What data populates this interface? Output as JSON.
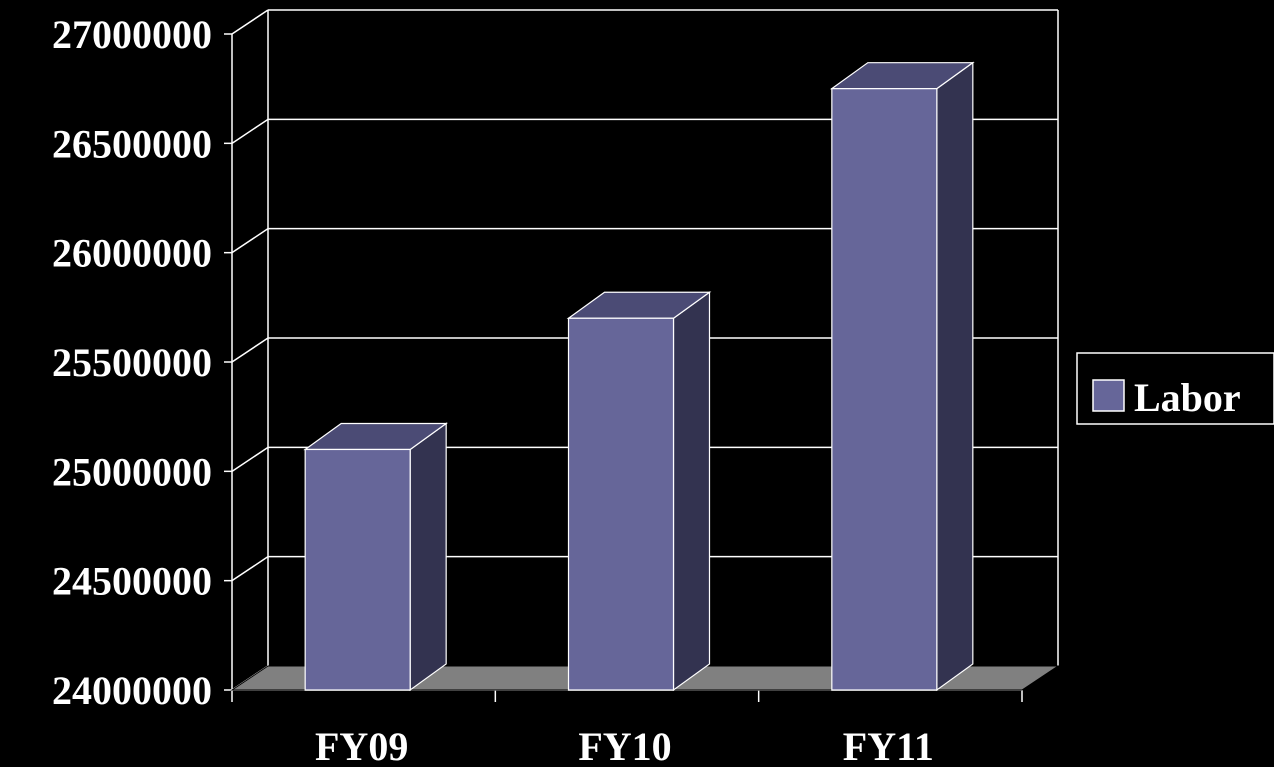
{
  "chart_data": {
    "type": "bar",
    "categories": [
      "FY09",
      "FY10",
      "FY11"
    ],
    "series": [
      {
        "name": "Labor",
        "values": [
          25100000,
          25700000,
          26750000
        ]
      }
    ],
    "title": "",
    "xlabel": "",
    "ylabel": "",
    "ylim": [
      24000000,
      27000000
    ],
    "yticks": [
      "24000000",
      "24500000",
      "25000000",
      "25500000",
      "26000000",
      "26500000",
      "27000000"
    ],
    "grid": true,
    "legend_position": "right",
    "colors": {
      "background": "#000000",
      "bar_front": "#666699",
      "bar_top": "#4b4b75",
      "bar_side": "#333350",
      "floor": "#808080",
      "grid": "#ffffff",
      "text": "#ffffff"
    }
  }
}
